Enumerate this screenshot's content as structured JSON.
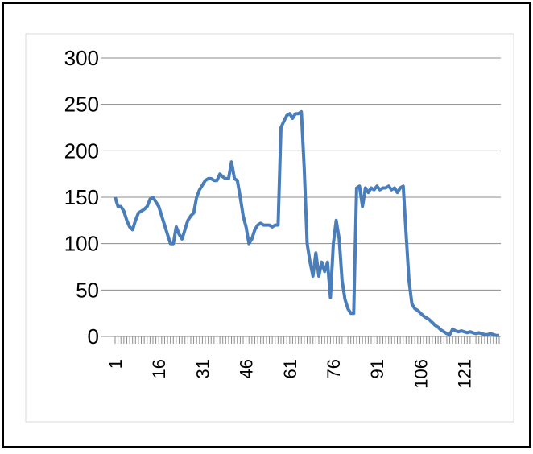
{
  "chart_data": {
    "type": "line",
    "categories": [
      "1",
      null,
      null,
      null,
      null,
      null,
      null,
      null,
      null,
      null,
      null,
      null,
      null,
      null,
      null,
      "16",
      null,
      null,
      null,
      null,
      null,
      null,
      null,
      null,
      null,
      null,
      null,
      null,
      null,
      null,
      "31",
      null,
      null,
      null,
      null,
      null,
      null,
      null,
      null,
      null,
      null,
      null,
      null,
      null,
      null,
      "46",
      null,
      null,
      null,
      null,
      null,
      null,
      null,
      null,
      null,
      null,
      null,
      null,
      null,
      null,
      "61",
      null,
      null,
      null,
      null,
      null,
      null,
      null,
      null,
      null,
      null,
      null,
      null,
      null,
      null,
      "76",
      null,
      null,
      null,
      null,
      null,
      null,
      null,
      null,
      null,
      null,
      null,
      null,
      null,
      null,
      "91",
      null,
      null,
      null,
      null,
      null,
      null,
      null,
      null,
      null,
      null,
      null,
      null,
      null,
      null,
      "106",
      null,
      null,
      null,
      null,
      null,
      null,
      null,
      null,
      null,
      null,
      null,
      null,
      null,
      null,
      "121",
      null,
      null,
      null,
      null,
      null,
      null,
      null,
      null,
      null,
      null,
      null,
      null
    ],
    "values": [
      150,
      140,
      140,
      135,
      125,
      118,
      115,
      125,
      133,
      135,
      137,
      140,
      148,
      150,
      145,
      140,
      130,
      120,
      110,
      100,
      100,
      118,
      110,
      105,
      115,
      125,
      130,
      133,
      150,
      158,
      163,
      168,
      170,
      170,
      168,
      168,
      175,
      172,
      170,
      170,
      188,
      170,
      168,
      150,
      130,
      118,
      100,
      105,
      115,
      120,
      122,
      120,
      120,
      120,
      118,
      120,
      120,
      225,
      232,
      238,
      240,
      235,
      240,
      240,
      242,
      180,
      100,
      80,
      65,
      90,
      65,
      80,
      70,
      80,
      42,
      100,
      125,
      105,
      60,
      40,
      30,
      25,
      25,
      160,
      162,
      140,
      160,
      155,
      160,
      158,
      162,
      158,
      160,
      160,
      162,
      158,
      160,
      155,
      160,
      162,
      110,
      60,
      35,
      30,
      28,
      25,
      22,
      20,
      18,
      15,
      12,
      10,
      7,
      5,
      3,
      2,
      8,
      6,
      5,
      6,
      5,
      4,
      5,
      4,
      3,
      4,
      3,
      2,
      2,
      3,
      2,
      1,
      1
    ],
    "color": "#4a7ebb",
    "ylim": [
      0,
      300
    ],
    "yticks": [
      0,
      50,
      100,
      150,
      200,
      250,
      300
    ],
    "grid": true
  }
}
